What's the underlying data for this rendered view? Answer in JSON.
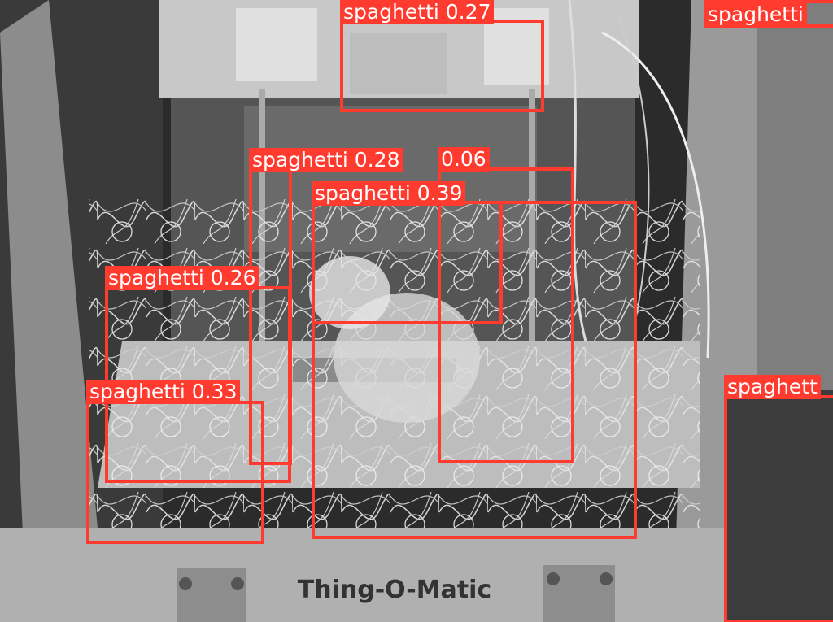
{
  "image": {
    "printer_label": "Thing-O-Matic",
    "description_colors": {
      "box": "#ff3b30",
      "label_text": "#ffffff"
    }
  },
  "detections": [
    {
      "label": "spaghetti 0.27"
    },
    {
      "label": "spaghetti"
    },
    {
      "label": "spaghetti 0.28"
    },
    {
      "label": "0.06"
    },
    {
      "label": "spaghetti 0.39"
    },
    {
      "label": "spaghetti 0.26"
    },
    {
      "label": "spaghetti 0.33"
    },
    {
      "label": "spaghett"
    }
  ]
}
